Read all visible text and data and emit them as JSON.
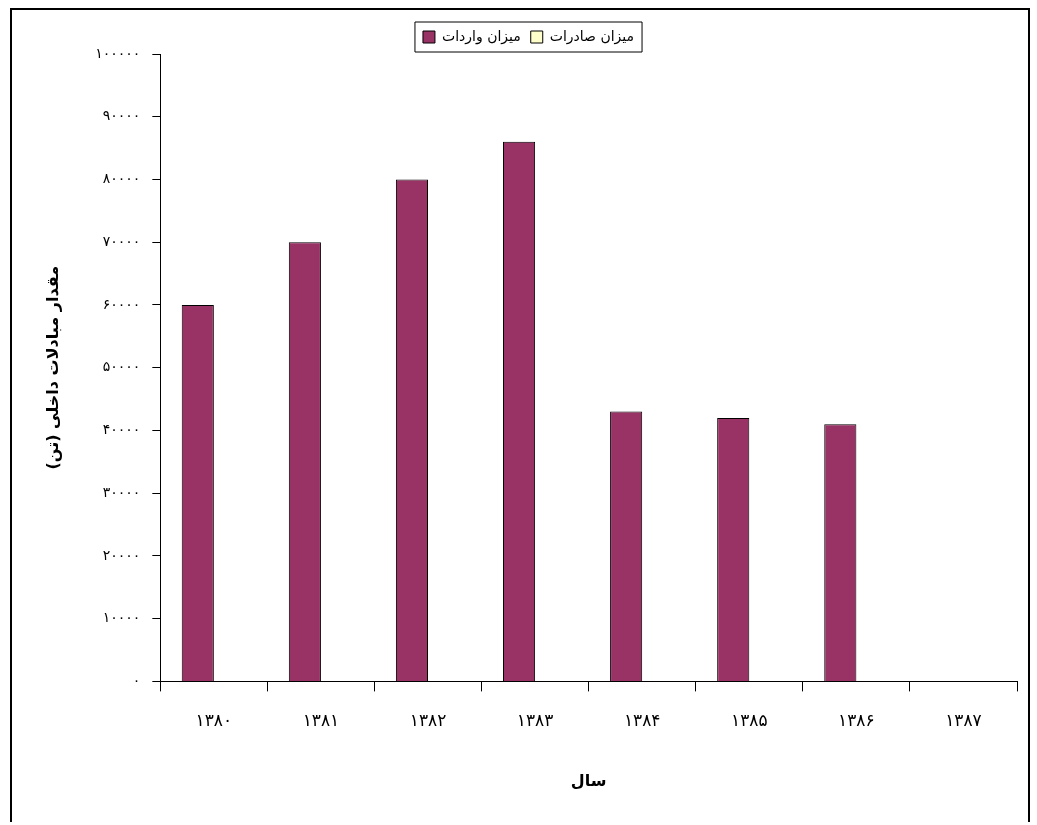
{
  "chart_data": {
    "type": "bar",
    "xlabel": "سال",
    "ylabel": "مقدار مبادلات داخلی (تن)",
    "categories": [
      "۱۳۸۰",
      "۱۳۸۱",
      "۱۳۸۲",
      "۱۳۸۳",
      "۱۳۸۴",
      "۱۳۸۵",
      "۱۳۸۶",
      "۱۳۸۷"
    ],
    "series": [
      {
        "name": "میزان واردات",
        "color": "#993366",
        "values": [
          60000,
          70000,
          80000,
          86000,
          43000,
          42000,
          41000,
          null
        ]
      },
      {
        "name": "میزان صادرات",
        "color": "#ffffcc",
        "values": [
          null,
          null,
          null,
          null,
          null,
          null,
          null,
          null
        ]
      }
    ],
    "ylim": [
      0,
      100000
    ],
    "yticks": [
      {
        "value": 0,
        "label": "۰"
      },
      {
        "value": 10000,
        "label": "۱۰۰۰۰"
      },
      {
        "value": 20000,
        "label": "۲۰۰۰۰"
      },
      {
        "value": 30000,
        "label": "۳۰۰۰۰"
      },
      {
        "value": 40000,
        "label": "۴۰۰۰۰"
      },
      {
        "value": 50000,
        "label": "۵۰۰۰۰"
      },
      {
        "value": 60000,
        "label": "۶۰۰۰۰"
      },
      {
        "value": 70000,
        "label": "۷۰۰۰۰"
      },
      {
        "value": 80000,
        "label": "۸۰۰۰۰"
      },
      {
        "value": 90000,
        "label": "۹۰۰۰۰"
      },
      {
        "value": 100000,
        "label": "۱۰۰۰۰۰"
      }
    ],
    "grid": false,
    "legend": "top"
  }
}
